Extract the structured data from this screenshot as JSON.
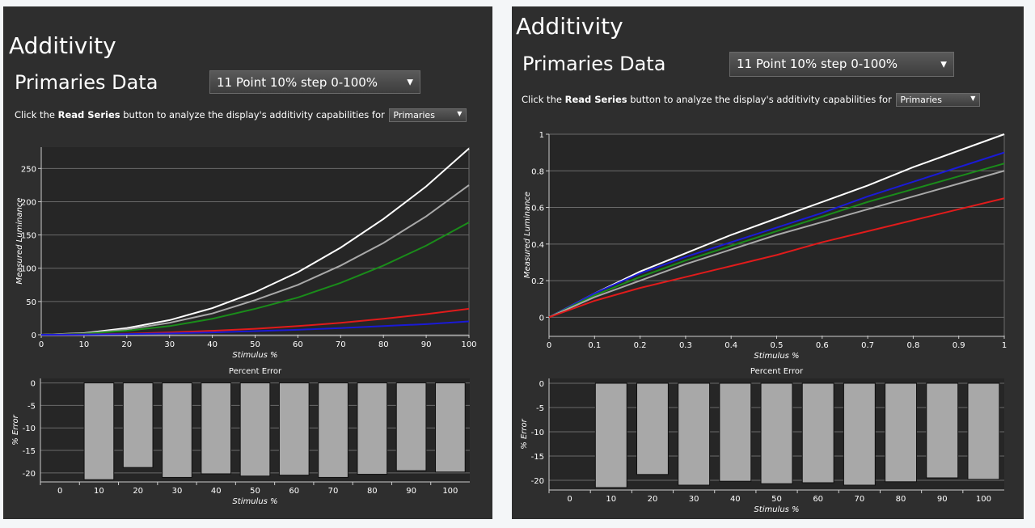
{
  "left": {
    "title": "Additivity",
    "subtitle": "Primaries Data",
    "series_select": "11 Point 10% step 0-100%",
    "instr_pre": "Click the",
    "instr_bold": "Read Series",
    "instr_post": "button to analyze the display's additivity capabilities for",
    "mode_select": "Primaries"
  },
  "right": {
    "title": "Additivity",
    "subtitle": "Primaries Data",
    "series_select": "11 Point 10% step 0-100%",
    "instr_pre": "Click the",
    "instr_bold": "Read Series",
    "instr_post": "button to analyze the display's additivity capabilities for",
    "mode_select": "Primaries"
  },
  "icons": {
    "dropdown_arrow": "chevron-down-icon"
  },
  "colors": {
    "panel_bg": "#2e2e2e",
    "plot_bg": "#262626",
    "grid": "#6a6a6a",
    "bar": "#a8a8a8"
  },
  "chart_data": [
    {
      "type": "line",
      "ylabel": "Measured Luminance",
      "xlabel": "Stimulus %",
      "x": [
        0,
        10,
        20,
        30,
        40,
        50,
        60,
        70,
        80,
        90,
        100
      ],
      "xticks": [
        0,
        10,
        20,
        30,
        40,
        50,
        60,
        70,
        80,
        90,
        100
      ],
      "yticks": [
        0,
        50,
        100,
        150,
        200,
        250
      ],
      "xlim": [
        0,
        100
      ],
      "ylim": [
        0,
        282
      ],
      "grid": true,
      "series": [
        {
          "color": "#ffffff",
          "values": [
            0,
            2.5,
            10,
            22,
            40,
            64,
            94,
            131,
            174,
            223,
            280
          ]
        },
        {
          "color": "#a9a9a9",
          "values": [
            0,
            2,
            8,
            18,
            32,
            52,
            75,
            104,
            138,
            178,
            225
          ]
        },
        {
          "color": "#1a8c1a",
          "values": [
            0,
            1.5,
            6,
            13,
            24,
            39,
            56,
            78,
            104,
            134,
            169
          ]
        },
        {
          "color": "#e01b1b",
          "values": [
            0,
            0.5,
            1.5,
            3.5,
            6,
            9,
            13,
            18,
            24,
            31,
            39
          ]
        },
        {
          "color": "#1a1ad6",
          "values": [
            0,
            0.3,
            1,
            2,
            3.5,
            5.5,
            7.5,
            10,
            13,
            16,
            20
          ]
        }
      ]
    },
    {
      "type": "bar",
      "title": "Percent Error",
      "ylabel": "% Error",
      "xlabel": "Stimulus %",
      "categories": [
        "0",
        "10",
        "20",
        "30",
        "40",
        "50",
        "60",
        "70",
        "80",
        "90",
        "100"
      ],
      "values": [
        0,
        -21.5,
        -18.8,
        -21,
        -20.2,
        -20.7,
        -20.5,
        -21,
        -20.3,
        -19.5,
        -19.8
      ],
      "yticks": [
        0,
        -5,
        -10,
        -15,
        -20
      ],
      "ylim": [
        -22,
        1
      ]
    },
    {
      "type": "line",
      "ylabel": "Measured Luminance",
      "xlabel": "Stimulus %",
      "x": [
        0,
        0.1,
        0.2,
        0.3,
        0.4,
        0.5,
        0.6,
        0.7,
        0.8,
        0.9,
        1
      ],
      "xticks": [
        "0",
        "0.1",
        "0.2",
        "0.3",
        "0.4",
        "0.5",
        "0.6",
        "0.7",
        "0.8",
        "0.9",
        "1"
      ],
      "yticks": [
        "0",
        "0.2",
        "0.4",
        "0.6",
        "0.8",
        "1"
      ],
      "xlim": [
        0,
        1
      ],
      "ylim": [
        -0.1,
        1
      ],
      "grid": true,
      "series": [
        {
          "color": "#ffffff",
          "values": [
            0,
            0.13,
            0.25,
            0.35,
            0.45,
            0.54,
            0.63,
            0.72,
            0.82,
            0.91,
            1.0
          ]
        },
        {
          "color": "#1a1ad6",
          "values": [
            0,
            0.13,
            0.24,
            0.33,
            0.41,
            0.49,
            0.57,
            0.66,
            0.74,
            0.82,
            0.9
          ]
        },
        {
          "color": "#1a8c1a",
          "values": [
            0,
            0.12,
            0.22,
            0.31,
            0.39,
            0.47,
            0.55,
            0.63,
            0.7,
            0.77,
            0.84
          ]
        },
        {
          "color": "#a9a9a9",
          "values": [
            0,
            0.11,
            0.2,
            0.29,
            0.37,
            0.45,
            0.52,
            0.59,
            0.66,
            0.73,
            0.8
          ]
        },
        {
          "color": "#e01b1b",
          "values": [
            0,
            0.09,
            0.16,
            0.22,
            0.28,
            0.34,
            0.41,
            0.47,
            0.53,
            0.59,
            0.65
          ]
        }
      ]
    },
    {
      "type": "bar",
      "title": "Percent Error",
      "ylabel": "% Error",
      "xlabel": "Stimulus %",
      "categories": [
        "0",
        "10",
        "20",
        "30",
        "40",
        "50",
        "60",
        "70",
        "80",
        "90",
        "100"
      ],
      "values": [
        0,
        -21.5,
        -18.8,
        -21,
        -20.2,
        -20.7,
        -20.5,
        -21,
        -20.3,
        -19.5,
        -19.8
      ],
      "yticks": [
        0,
        -5,
        -10,
        -15,
        -20
      ],
      "ylim": [
        -22,
        1
      ]
    }
  ]
}
